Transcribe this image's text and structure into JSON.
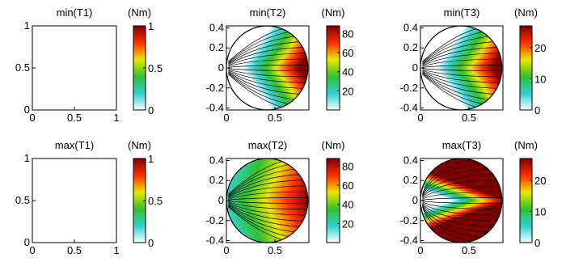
{
  "chart_data": [
    {
      "type": "heatmap",
      "title": "min(T1)",
      "unit_label": "(Nm)",
      "field": "empty",
      "xlim": [
        0,
        1
      ],
      "ylim": [
        0,
        1
      ],
      "xticks": [
        "0",
        "0.5",
        "1"
      ],
      "yticks": [
        "0",
        "0.5",
        "1"
      ],
      "colorbar_range": [
        0,
        1
      ],
      "colorbar_ticks": [
        "0",
        "0.5",
        "1"
      ]
    },
    {
      "type": "heatmap",
      "title": "min(T2)",
      "unit_label": "(Nm)",
      "field": "min",
      "xlim": [
        0,
        0.85
      ],
      "ylim": [
        -0.42,
        0.42
      ],
      "xticks": [
        "0",
        "0.5"
      ],
      "yticks": [
        "-0.4",
        "-0.2",
        "0",
        "0.2",
        "0.4"
      ],
      "colorbar_range": [
        0,
        88
      ],
      "colorbar_ticks": [
        "20",
        "40",
        "60",
        "80"
      ]
    },
    {
      "type": "heatmap",
      "title": "min(T3)",
      "unit_label": "(Nm)",
      "field": "min",
      "xlim": [
        0,
        0.85
      ],
      "ylim": [
        -0.42,
        0.42
      ],
      "xticks": [
        "0",
        "0.5"
      ],
      "yticks": [
        "-0.4",
        "-0.2",
        "0",
        "0.2",
        "0.4"
      ],
      "colorbar_range": [
        0,
        27
      ],
      "colorbar_ticks": [
        "0",
        "10",
        "20"
      ]
    },
    {
      "type": "heatmap",
      "title": "max(T1)",
      "unit_label": "(Nm)",
      "field": "empty",
      "xlim": [
        0,
        1
      ],
      "ylim": [
        0,
        1
      ],
      "xticks": [
        "0",
        "0.5",
        "1"
      ],
      "yticks": [
        "0",
        "0.5",
        "1"
      ],
      "colorbar_range": [
        0,
        1
      ],
      "colorbar_ticks": [
        "0",
        "0.5",
        "1"
      ]
    },
    {
      "type": "heatmap",
      "title": "max(T2)",
      "unit_label": "(Nm)",
      "field": "max2",
      "xlim": [
        0,
        0.85
      ],
      "ylim": [
        -0.42,
        0.42
      ],
      "xticks": [
        "0",
        "0.5"
      ],
      "yticks": [
        "-0.4",
        "-0.2",
        "0",
        "0.2",
        "0.4"
      ],
      "colorbar_range": [
        0,
        88
      ],
      "colorbar_ticks": [
        "20",
        "40",
        "60",
        "80"
      ]
    },
    {
      "type": "heatmap",
      "title": "max(T3)",
      "unit_label": "(Nm)",
      "field": "max3",
      "xlim": [
        0,
        0.85
      ],
      "ylim": [
        -0.42,
        0.42
      ],
      "xticks": [
        "0",
        "0.5"
      ],
      "yticks": [
        "-0.4",
        "-0.2",
        "0",
        "0.2",
        "0.4"
      ],
      "colorbar_range": [
        0,
        27
      ],
      "colorbar_ticks": [
        "0",
        "10",
        "20"
      ]
    }
  ],
  "colormap": [
    "#ffffff",
    "#30d0d0",
    "#30c030",
    "#e8e800",
    "#ff3000",
    "#800000"
  ]
}
